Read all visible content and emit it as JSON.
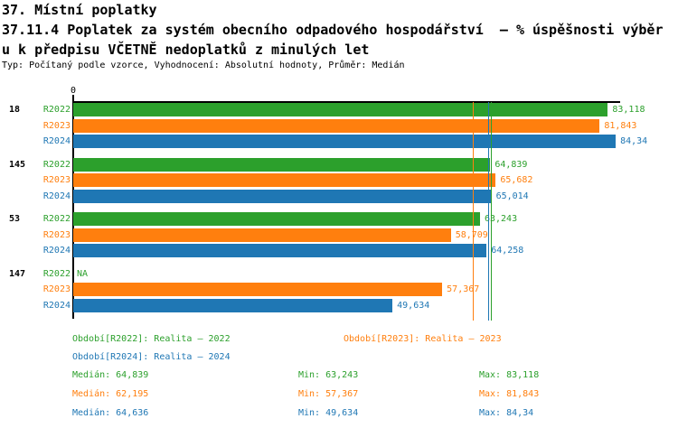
{
  "header": {
    "line1": "37. Místní poplatky",
    "line2": "37.11.4 Poplatek za systém obecního odpadového hospodářství  – % úspěšnosti výběr",
    "line3": "u k předpisu VČETNĚ nedoplatků z minulých let",
    "meta": "Typ: Počítaný podle vzorce, Vyhodnocení: Absolutní hodnoty, Průměr: Medián"
  },
  "colors": {
    "r2022": "#2ca02c",
    "r2023": "#ff7f0e",
    "r2024": "#1f77b4",
    "axis": "#000000",
    "background": "#ffffff"
  },
  "chart_data": {
    "type": "bar",
    "orientation": "horizontal",
    "title": "37.11.4 Poplatek za systém obecního odpadového hospodářství – % úspěšnosti výběru k předpisu VČETNĚ nedoplatků z minulých let",
    "categories": [
      "18",
      "145",
      "53",
      "147"
    ],
    "series": [
      {
        "name": "R2022",
        "color": "#2ca02c",
        "values": [
          83.118,
          64.839,
          63.243,
          null
        ],
        "value_labels": [
          "83,118",
          "64,839",
          "63,243",
          "NA"
        ],
        "median": 64.839,
        "min": 63.243,
        "max": 83.118
      },
      {
        "name": "R2023",
        "color": "#ff7f0e",
        "values": [
          81.843,
          65.682,
          58.709,
          57.367
        ],
        "value_labels": [
          "81,843",
          "65,682",
          "58,709",
          "57,367"
        ],
        "median": 62.195,
        "min": 57.367,
        "max": 81.843
      },
      {
        "name": "R2024",
        "color": "#1f77b4",
        "values": [
          84.34,
          65.014,
          64.258,
          49.634
        ],
        "value_labels": [
          "84,34",
          "65,014",
          "64,258",
          "49,634"
        ],
        "median": 64.636,
        "min": 49.634,
        "max": 84.34
      }
    ],
    "xlim": [
      0,
      85
    ],
    "x_ticks": [
      "0"
    ],
    "origin_label": "0",
    "grid": false,
    "median_reference_lines": true,
    "legend_position": "bottom"
  },
  "legend": [
    {
      "label": "Období[R2022]: Realita – 2022",
      "color": "#2ca02c"
    },
    {
      "label": "Období[R2023]: Realita – 2023",
      "color": "#ff7f0e"
    },
    {
      "label": "Období[R2024]: Realita – 2024",
      "color": "#1f77b4"
    }
  ],
  "stats": [
    {
      "median": "Medián: 64,839",
      "min": "Min: 63,243",
      "max": "Max: 83,118",
      "color": "#2ca02c"
    },
    {
      "median": "Medián: 62,195",
      "min": "Min: 57,367",
      "max": "Max: 81,843",
      "color": "#ff7f0e"
    },
    {
      "median": "Medián: 64,636",
      "min": "Min: 49,634",
      "max": "Max: 84,34",
      "color": "#1f77b4"
    }
  ]
}
